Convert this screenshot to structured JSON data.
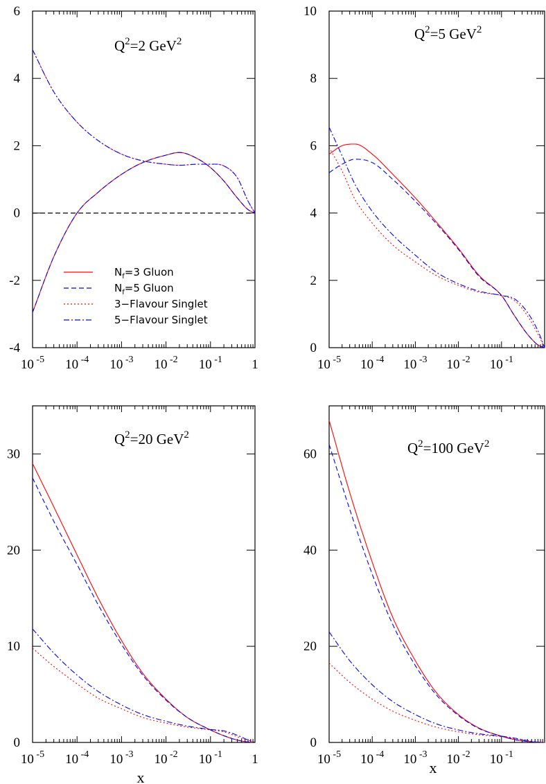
{
  "chart_data": [
    {
      "type": "line",
      "label": {
        "base": "Q",
        "sup1": "2",
        "mid": "=2 GeV",
        "sup2": "2"
      },
      "xscale": "log",
      "xlim": [
        "1e-5",
        "1"
      ],
      "ylim": [
        -4,
        6
      ],
      "yticks": [
        "-4",
        "-2",
        "0",
        "2",
        "4",
        "6"
      ],
      "xticks": [
        {
          "base": "10",
          "exp": "-5"
        },
        {
          "base": "10",
          "exp": "-4"
        },
        {
          "base": "10",
          "exp": "-3"
        },
        {
          "base": "10",
          "exp": "-2"
        },
        {
          "base": "10",
          "exp": "-1"
        },
        {
          "base": "1",
          "exp": ""
        }
      ],
      "xlabel": "",
      "zero_line": true,
      "legend": {
        "position": "bottom-left",
        "entries": [
          {
            "sym": "N",
            "sub": "f",
            "text": "=3 Gluon"
          },
          {
            "sym": "N",
            "sub": "f",
            "text": "=5 Gluon"
          },
          {
            "sym": "",
            "sub": "",
            "text": "3−Flavour Singlet"
          },
          {
            "sym": "",
            "sub": "",
            "text": "5−Flavour Singlet"
          }
        ]
      },
      "x": [
        1e-05,
        3e-05,
        0.0001,
        0.0003,
        0.001,
        0.003,
        0.01,
        0.02,
        0.05,
        0.1,
        0.2,
        0.4,
        0.7,
        1.0
      ],
      "series": [
        {
          "style": "solid",
          "color": "#ff0000",
          "values": [
            -2.95,
            -1.3,
            0.0,
            0.62,
            1.15,
            1.5,
            1.72,
            1.8,
            1.62,
            1.35,
            0.95,
            0.45,
            0.1,
            0.0
          ]
        },
        {
          "style": "dashed",
          "color": "#0000ff",
          "values": [
            -2.95,
            -1.3,
            0.0,
            0.62,
            1.15,
            1.5,
            1.72,
            1.8,
            1.62,
            1.35,
            0.95,
            0.45,
            0.1,
            0.0
          ]
        },
        {
          "style": "dotted",
          "color": "#ff0000",
          "values": [
            4.85,
            3.6,
            2.7,
            2.15,
            1.75,
            1.55,
            1.45,
            1.42,
            1.45,
            1.45,
            1.4,
            1.05,
            0.35,
            0.0
          ]
        },
        {
          "style": "dashdot",
          "color": "#0000ff",
          "values": [
            4.85,
            3.6,
            2.7,
            2.15,
            1.75,
            1.55,
            1.45,
            1.42,
            1.45,
            1.45,
            1.4,
            1.05,
            0.35,
            0.0
          ]
        }
      ]
    },
    {
      "type": "line",
      "label": {
        "base": "Q",
        "sup1": "2",
        "mid": "=5 GeV",
        "sup2": "2"
      },
      "xscale": "log",
      "xlim": [
        "1e-5",
        "1"
      ],
      "ylim": [
        0,
        10
      ],
      "yticks": [
        "0",
        "2",
        "4",
        "6",
        "8",
        "10"
      ],
      "xticks": [
        {
          "base": "10",
          "exp": "-5"
        },
        {
          "base": "10",
          "exp": "-4"
        },
        {
          "base": "10",
          "exp": "-3"
        },
        {
          "base": "10",
          "exp": "-2"
        },
        {
          "base": "10",
          "exp": "-1"
        }
      ],
      "xlabel": "",
      "zero_line": false,
      "x": [
        1e-05,
        2e-05,
        4e-05,
        0.0001,
        0.0003,
        0.001,
        0.003,
        0.01,
        0.03,
        0.1,
        0.2,
        0.4,
        0.7,
        1.0
      ],
      "series": [
        {
          "style": "solid",
          "color": "#ff0000",
          "values": [
            5.75,
            6.0,
            6.05,
            5.75,
            5.15,
            4.45,
            3.75,
            2.95,
            2.15,
            1.55,
            0.95,
            0.4,
            0.08,
            0.0
          ]
        },
        {
          "style": "dashed",
          "color": "#0000ff",
          "values": [
            5.2,
            5.45,
            5.6,
            5.5,
            5.0,
            4.35,
            3.7,
            2.92,
            2.12,
            1.55,
            0.95,
            0.4,
            0.08,
            0.0
          ]
        },
        {
          "style": "dotted",
          "color": "#ff0000",
          "values": [
            5.95,
            5.25,
            4.4,
            3.7,
            3.05,
            2.55,
            2.15,
            1.85,
            1.65,
            1.55,
            1.4,
            0.95,
            0.4,
            0.0
          ]
        },
        {
          "style": "dashdot",
          "color": "#0000ff",
          "values": [
            6.55,
            5.7,
            4.85,
            4.05,
            3.35,
            2.75,
            2.25,
            1.9,
            1.68,
            1.55,
            1.45,
            1.05,
            0.5,
            0.0
          ]
        }
      ]
    },
    {
      "type": "line",
      "label": {
        "base": "Q",
        "sup1": "2",
        "mid": "=20 GeV",
        "sup2": "2"
      },
      "xscale": "log",
      "xlim": [
        "1e-5",
        "1"
      ],
      "ylim": [
        0,
        35
      ],
      "yticks": [
        "0",
        "10",
        "20",
        "30"
      ],
      "xticks": [
        {
          "base": "10",
          "exp": "-5"
        },
        {
          "base": "10",
          "exp": "-4"
        },
        {
          "base": "10",
          "exp": "-3"
        },
        {
          "base": "10",
          "exp": "-2"
        },
        {
          "base": "10",
          "exp": "-1"
        },
        {
          "base": "1",
          "exp": ""
        }
      ],
      "xlabel": "x",
      "zero_line": false,
      "x": [
        1e-05,
        3e-05,
        0.0001,
        0.0003,
        0.001,
        0.003,
        0.01,
        0.03,
        0.1,
        0.2,
        0.4,
        0.7,
        1.0
      ],
      "series": [
        {
          "style": "solid",
          "color": "#ff0000",
          "values": [
            29.0,
            24.5,
            19.5,
            15.0,
            10.6,
            7.2,
            4.5,
            2.6,
            1.3,
            0.7,
            0.25,
            0.05,
            0.0
          ]
        },
        {
          "style": "dashed",
          "color": "#0000ff",
          "values": [
            27.5,
            23.0,
            18.5,
            14.3,
            10.2,
            7.0,
            4.4,
            2.6,
            1.3,
            0.7,
            0.25,
            0.05,
            0.0
          ]
        },
        {
          "style": "dotted",
          "color": "#ff0000",
          "values": [
            9.8,
            7.9,
            6.1,
            4.6,
            3.5,
            2.6,
            2.0,
            1.6,
            1.3,
            1.1,
            0.6,
            0.15,
            0.0
          ]
        },
        {
          "style": "dashdot",
          "color": "#0000ff",
          "values": [
            11.8,
            9.3,
            7.0,
            5.3,
            3.9,
            2.9,
            2.2,
            1.7,
            1.35,
            1.2,
            0.75,
            0.25,
            0.0
          ]
        }
      ]
    },
    {
      "type": "line",
      "label": {
        "base": "Q",
        "sup1": "2",
        "mid": "=100 GeV",
        "sup2": "2"
      },
      "xscale": "log",
      "xlim": [
        "1e-5",
        "1"
      ],
      "ylim": [
        0,
        70
      ],
      "yticks": [
        "0",
        "20",
        "40",
        "60"
      ],
      "xticks": [
        {
          "base": "10",
          "exp": "-5"
        },
        {
          "base": "10",
          "exp": "-4"
        },
        {
          "base": "10",
          "exp": "-3"
        },
        {
          "base": "10",
          "exp": "-2"
        },
        {
          "base": "10",
          "exp": "-1"
        }
      ],
      "xlabel": "x",
      "zero_line": false,
      "x": [
        1e-05,
        3e-05,
        0.0001,
        0.0003,
        0.001,
        0.003,
        0.01,
        0.03,
        0.1,
        0.2,
        0.4,
        0.7,
        1.0
      ],
      "series": [
        {
          "style": "solid",
          "color": "#ff0000",
          "values": [
            67.0,
            52.0,
            37.5,
            26.0,
            17.0,
            10.5,
            5.8,
            3.0,
            1.3,
            0.6,
            0.2,
            0.03,
            0.0
          ]
        },
        {
          "style": "dashed",
          "color": "#0000ff",
          "values": [
            62.0,
            48.5,
            35.0,
            24.5,
            16.0,
            10.0,
            5.6,
            2.9,
            1.3,
            0.6,
            0.2,
            0.03,
            0.0
          ]
        },
        {
          "style": "dotted",
          "color": "#ff0000",
          "values": [
            16.5,
            12.5,
            9.0,
            6.5,
            4.6,
            3.2,
            2.2,
            1.6,
            1.2,
            0.8,
            0.35,
            0.05,
            0.0
          ]
        },
        {
          "style": "dashdot",
          "color": "#0000ff",
          "values": [
            23.0,
            17.0,
            12.0,
            8.5,
            5.8,
            3.9,
            2.6,
            1.8,
            1.3,
            0.9,
            0.4,
            0.06,
            0.0
          ]
        }
      ]
    }
  ]
}
